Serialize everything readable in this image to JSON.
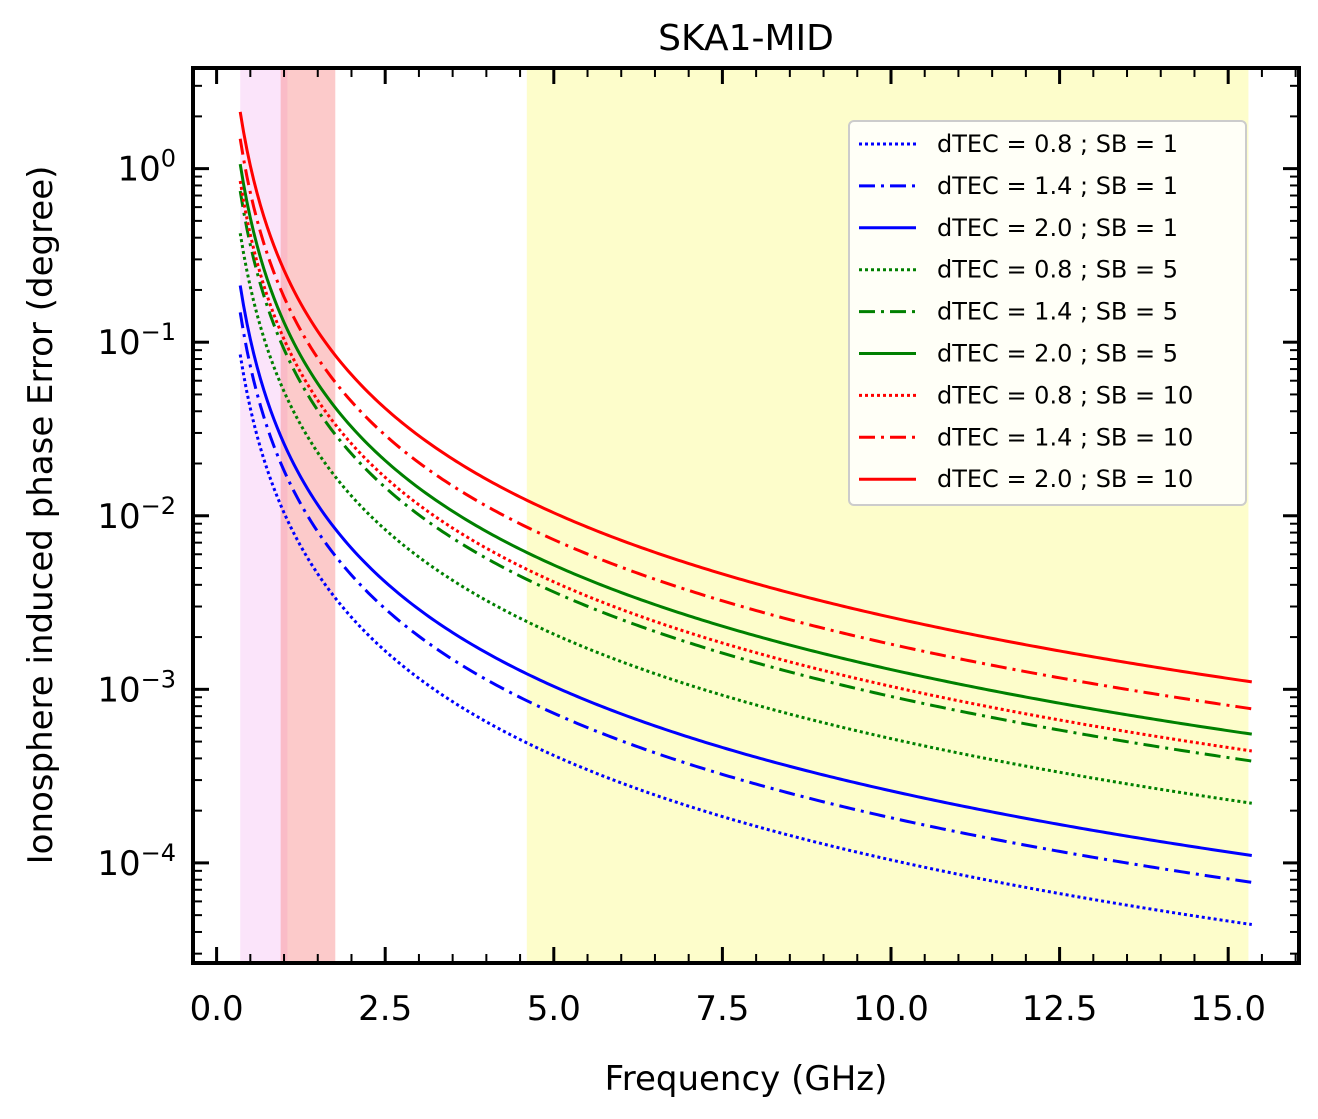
{
  "chart_data": {
    "type": "line",
    "title": "SKA1-MID",
    "xlabel": "Frequency (GHz)",
    "ylabel": "Ionosphere induced phase Error (degree)",
    "xlim": [
      -0.35,
      16.05
    ],
    "ylim": [
      2.65e-05,
      3.8
    ],
    "yscale": "log",
    "xticks": [
      {
        "value": 0.0,
        "label": "0.0"
      },
      {
        "value": 2.5,
        "label": "2.5"
      },
      {
        "value": 5.0,
        "label": "5.0"
      },
      {
        "value": 7.5,
        "label": "7.5"
      },
      {
        "value": 10.0,
        "label": "10.0"
      },
      {
        "value": 12.5,
        "label": "12.5"
      },
      {
        "value": 15.0,
        "label": "15.0"
      }
    ],
    "yticks": [
      {
        "value": 1,
        "base": "10",
        "exp": "0"
      },
      {
        "value": 0.1,
        "base": "10",
        "exp": "−1"
      },
      {
        "value": 0.01,
        "base": "10",
        "exp": "−2"
      },
      {
        "value": 0.001,
        "base": "10",
        "exp": "−3"
      },
      {
        "value": 0.0001,
        "base": "10",
        "exp": "−4"
      }
    ],
    "shaded_bands": [
      {
        "name": "band-1",
        "x0": 0.35,
        "x1": 1.05,
        "color": "#f3b3f0",
        "opacity": 0.35
      },
      {
        "name": "band-2",
        "x0": 0.95,
        "x1": 1.76,
        "color": "#f88a8a",
        "opacity": 0.45
      },
      {
        "name": "band-5",
        "x0": 4.6,
        "x1": 15.3,
        "color": "#fafa8c",
        "opacity": 0.45
      }
    ],
    "x_range": [
      0.35,
      15.35
    ],
    "series": [
      {
        "name": "dTEC = 0.8 ; SB = 1",
        "dtec": 0.8,
        "sb": 1,
        "color": "#0000ff",
        "style": "dotted",
        "k": 0.0104
      },
      {
        "name": "dTEC = 1.4 ; SB = 1",
        "dtec": 1.4,
        "sb": 1,
        "color": "#0000ff",
        "style": "dashdot",
        "k": 0.0182
      },
      {
        "name": "dTEC = 2.0 ; SB = 1",
        "dtec": 2.0,
        "sb": 1,
        "color": "#0000ff",
        "style": "solid",
        "k": 0.026
      },
      {
        "name": "dTEC = 0.8 ; SB = 5",
        "dtec": 0.8,
        "sb": 5,
        "color": "#008000",
        "style": "dotted",
        "k": 0.052
      },
      {
        "name": "dTEC = 1.4 ; SB = 5",
        "dtec": 1.4,
        "sb": 5,
        "color": "#008000",
        "style": "dashdot",
        "k": 0.091
      },
      {
        "name": "dTEC = 2.0 ; SB = 5",
        "dtec": 2.0,
        "sb": 5,
        "color": "#008000",
        "style": "solid",
        "k": 0.13
      },
      {
        "name": "dTEC = 0.8 ; SB = 10",
        "dtec": 0.8,
        "sb": 10,
        "color": "#ff0000",
        "style": "dotted",
        "k": 0.104
      },
      {
        "name": "dTEC = 1.4 ; SB = 10",
        "dtec": 1.4,
        "sb": 10,
        "color": "#ff0000",
        "style": "dashdot",
        "k": 0.182
      },
      {
        "name": "dTEC = 2.0 ; SB = 10",
        "dtec": 2.0,
        "sb": 10,
        "color": "#ff0000",
        "style": "solid",
        "k": 0.26
      }
    ],
    "legend_position": "upper-right"
  }
}
